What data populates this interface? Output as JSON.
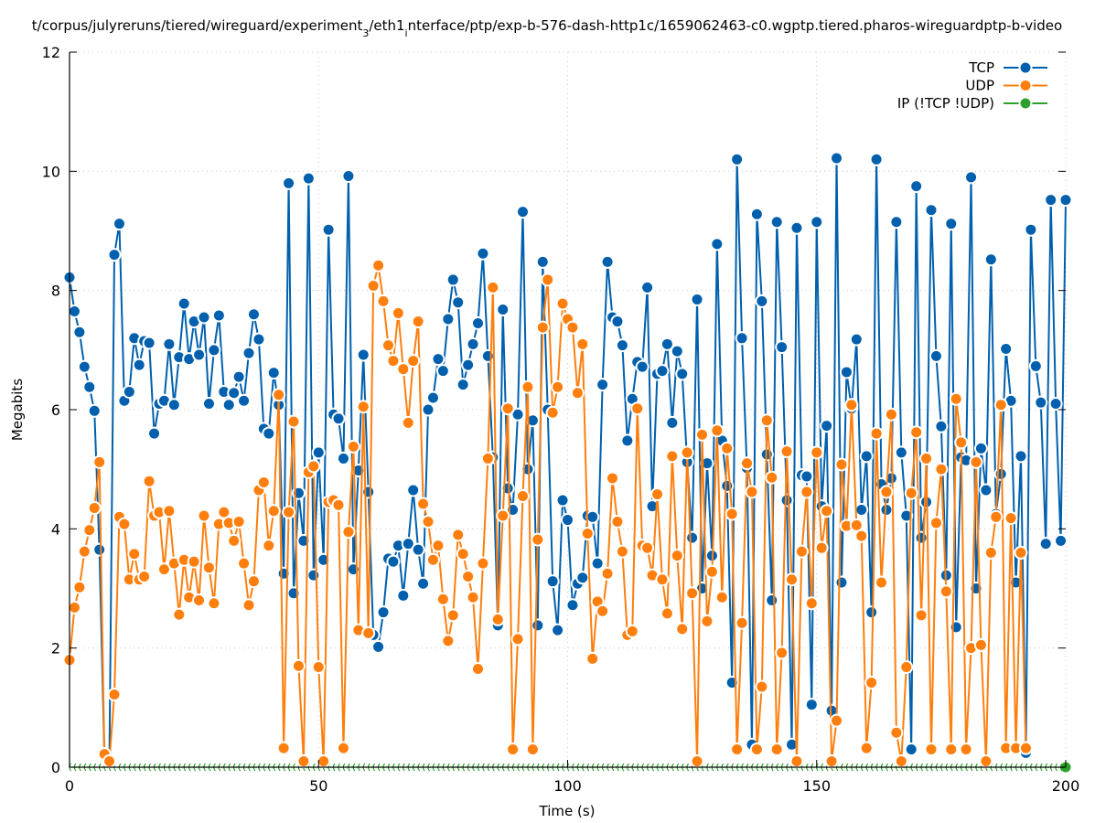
{
  "chart_data": {
    "type": "line",
    "title": "t/corpus/julyreruns/tiered/wireguard/experiment_3/eth1_interface/ptp/exp-b-576-dash-http1c/1659062463-c0.wgptp.tiered.pharos-wireguardptp-b-video",
    "title_parts": [
      {
        "text": "t/corpus/julyreruns/tiered/wireguard/experiment",
        "sub": false
      },
      {
        "text": "3",
        "sub": true
      },
      {
        "text": "/eth1",
        "sub": false
      },
      {
        "text": "i",
        "sub": true
      },
      {
        "text": "nterface/ptp/exp-b-576-dash-http1c/1659062463-c0.wgptp.tiered.pharos-wireguardptp-b-video",
        "sub": false
      }
    ],
    "xlabel": "Time (s)",
    "ylabel": "Megabits",
    "xlim": [
      0,
      200
    ],
    "ylim": [
      0,
      12
    ],
    "xticks": [
      0,
      50,
      100,
      150,
      200
    ],
    "yticks": [
      0,
      2,
      4,
      6,
      8,
      10,
      12
    ],
    "grid": true,
    "legend_position": "top-right",
    "x_start": 0,
    "x_step": 1,
    "series": [
      {
        "name": "TCP",
        "color": "#0060ad",
        "values": [
          8.22,
          7.65,
          7.3,
          6.72,
          6.38,
          5.98,
          3.65,
          0.2,
          0.1,
          8.6,
          9.12,
          6.15,
          6.3,
          7.2,
          6.75,
          7.15,
          7.12,
          5.6,
          6.1,
          6.15,
          7.1,
          6.08,
          6.88,
          7.78,
          6.85,
          7.48,
          6.92,
          7.55,
          6.1,
          7.0,
          7.58,
          6.3,
          6.08,
          6.28,
          6.55,
          6.15,
          6.95,
          7.6,
          7.18,
          5.68,
          5.6,
          6.62,
          6.08,
          3.25,
          9.8,
          2.92,
          4.6,
          3.8,
          9.88,
          3.22,
          5.28,
          3.48,
          9.02,
          5.92,
          5.85,
          5.18,
          9.92,
          3.32,
          4.98,
          6.92,
          4.62,
          2.22,
          2.02,
          2.6,
          3.5,
          3.45,
          3.72,
          2.88,
          3.75,
          4.65,
          3.65,
          3.08,
          6.0,
          6.2,
          6.85,
          6.65,
          7.52,
          8.18,
          7.8,
          6.42,
          6.75,
          7.1,
          7.45,
          8.62,
          6.9,
          5.2,
          2.38,
          7.68,
          4.68,
          4.32,
          5.92,
          9.32,
          5.0,
          5.82,
          2.38,
          8.48,
          6.0,
          3.12,
          2.3,
          4.48,
          4.15,
          2.72,
          3.08,
          3.18,
          4.22,
          4.2,
          3.42,
          6.42,
          8.48,
          7.55,
          7.48,
          7.08,
          5.48,
          6.18,
          6.8,
          6.72,
          8.05,
          4.38,
          6.6,
          6.65,
          7.1,
          5.78,
          6.98,
          6.6,
          5.12,
          3.85,
          7.85,
          3.0,
          5.1,
          3.55,
          8.78,
          5.48,
          4.72,
          1.42,
          10.2,
          7.2,
          5.02,
          0.38,
          9.28,
          7.82,
          5.25,
          2.8,
          9.15,
          7.05,
          4.48,
          0.38,
          9.05,
          4.9,
          4.88,
          1.05,
          9.15,
          4.38,
          5.73,
          0.95,
          10.22,
          3.1,
          6.63,
          6.02,
          7.18,
          4.32,
          5.22,
          2.6,
          10.2,
          4.75,
          4.32,
          4.85,
          9.15,
          5.28,
          4.22,
          0.3,
          9.75,
          3.85,
          4.45,
          9.35,
          6.9,
          5.72,
          3.22,
          9.12,
          2.35,
          5.2,
          5.15,
          9.9,
          3.0,
          5.35,
          4.65,
          8.52,
          4.25,
          4.92,
          7.02,
          6.15,
          3.1,
          5.22,
          0.24,
          9.02,
          6.73,
          6.12,
          3.75,
          9.52,
          6.1,
          3.8,
          9.52
        ]
      },
      {
        "name": "UDP",
        "color": "#ff7f0e",
        "values": [
          1.8,
          2.68,
          3.02,
          3.62,
          3.98,
          4.35,
          5.12,
          0.22,
          0.1,
          1.22,
          4.2,
          4.08,
          3.15,
          3.58,
          3.15,
          3.2,
          4.8,
          4.22,
          4.28,
          3.32,
          4.3,
          3.42,
          2.56,
          3.48,
          2.85,
          3.45,
          2.8,
          4.22,
          3.35,
          2.75,
          4.08,
          4.28,
          4.1,
          3.8,
          4.12,
          3.42,
          2.72,
          3.12,
          4.65,
          4.78,
          3.72,
          4.3,
          6.25,
          0.32,
          4.28,
          5.8,
          1.7,
          0.1,
          4.95,
          5.05,
          1.68,
          0.1,
          4.45,
          4.48,
          4.4,
          0.32,
          3.95,
          5.38,
          2.3,
          6.05,
          2.25,
          8.08,
          8.42,
          7.82,
          7.08,
          6.82,
          7.62,
          6.68,
          5.78,
          6.82,
          7.48,
          4.42,
          4.12,
          3.48,
          3.72,
          2.82,
          2.12,
          2.55,
          3.9,
          3.58,
          3.2,
          2.85,
          1.65,
          3.42,
          5.18,
          8.05,
          2.48,
          4.22,
          6.02,
          0.3,
          2.15,
          4.55,
          6.38,
          0.3,
          3.82,
          7.38,
          8.18,
          5.95,
          6.38,
          7.78,
          7.52,
          7.38,
          6.28,
          7.1,
          3.92,
          1.82,
          2.78,
          2.62,
          3.25,
          4.85,
          4.12,
          3.62,
          2.22,
          2.28,
          6.02,
          3.72,
          3.68,
          3.22,
          4.58,
          3.15,
          2.58,
          5.22,
          3.55,
          2.32,
          5.28,
          2.92,
          0.1,
          5.58,
          2.45,
          3.28,
          5.65,
          2.85,
          5.35,
          4.25,
          0.3,
          2.42,
          5.1,
          4.62,
          0.3,
          1.35,
          5.82,
          4.86,
          0.3,
          1.92,
          5.3,
          3.15,
          0.1,
          3.62,
          4.62,
          2.75,
          5.28,
          3.68,
          4.3,
          0.1,
          0.78,
          5.08,
          4.05,
          6.08,
          4.06,
          3.88,
          0.32,
          1.42,
          5.6,
          3.1,
          4.62,
          5.92,
          0.58,
          0.1,
          1.68,
          4.6,
          5.62,
          2.55,
          5.18,
          0.3,
          4.1,
          5.0,
          2.95,
          0.3,
          6.18,
          5.45,
          0.3,
          2.0,
          5.12,
          2.05,
          0.1,
          3.6,
          4.2,
          6.08,
          0.32,
          4.18,
          0.32,
          3.6,
          0.32
        ]
      },
      {
        "name": "IP (!TCP  !UDP)",
        "color": "#2ca02c",
        "values": [
          0,
          0,
          0,
          0,
          0,
          0,
          0,
          0,
          0,
          0,
          0,
          0,
          0,
          0,
          0,
          0,
          0,
          0,
          0,
          0,
          0,
          0,
          0,
          0,
          0,
          0,
          0,
          0,
          0,
          0,
          0,
          0,
          0,
          0,
          0,
          0,
          0,
          0,
          0,
          0,
          0,
          0,
          0,
          0,
          0,
          0,
          0,
          0,
          0,
          0,
          0,
          0,
          0,
          0,
          0,
          0,
          0,
          0,
          0,
          0,
          0,
          0,
          0,
          0,
          0,
          0,
          0,
          0,
          0,
          0,
          0,
          0,
          0,
          0,
          0,
          0,
          0,
          0,
          0,
          0,
          0,
          0,
          0,
          0,
          0,
          0,
          0,
          0,
          0,
          0,
          0,
          0,
          0,
          0,
          0,
          0,
          0,
          0,
          0,
          0,
          0,
          0,
          0,
          0,
          0,
          0,
          0,
          0,
          0,
          0,
          0,
          0,
          0,
          0,
          0,
          0,
          0,
          0,
          0,
          0,
          0,
          0,
          0,
          0,
          0,
          0,
          0,
          0,
          0,
          0,
          0,
          0,
          0,
          0,
          0,
          0,
          0,
          0,
          0,
          0,
          0,
          0,
          0,
          0,
          0,
          0,
          0,
          0,
          0,
          0,
          0,
          0,
          0,
          0,
          0,
          0,
          0,
          0,
          0,
          0,
          0,
          0,
          0,
          0,
          0,
          0,
          0,
          0,
          0,
          0,
          0,
          0,
          0,
          0,
          0,
          0,
          0,
          0,
          0,
          0,
          0,
          0,
          0,
          0,
          0,
          0,
          0,
          0,
          0,
          0,
          0,
          0,
          0,
          0,
          0,
          0,
          0,
          0,
          0,
          0,
          0
        ]
      }
    ]
  }
}
